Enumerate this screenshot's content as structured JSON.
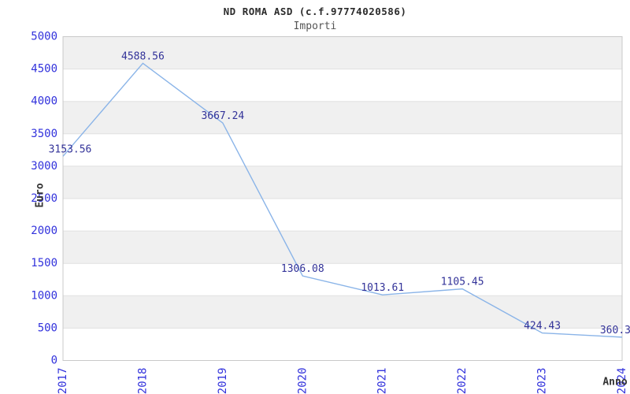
{
  "header": {
    "title": "ND ROMA ASD (c.f.97774020586)",
    "subtitle": "Importi"
  },
  "chart_data": {
    "type": "line",
    "title": "ND ROMA ASD (c.f.97774020586)",
    "subtitle": "Importi",
    "xlabel": "Anno",
    "ylabel": "Euro",
    "categories": [
      "2017",
      "2018",
      "2019",
      "2020",
      "2021",
      "2022",
      "2023",
      "2024"
    ],
    "series": [
      {
        "name": "Importi",
        "values": [
          3153.56,
          4588.56,
          3667.24,
          1306.08,
          1013.61,
          1105.45,
          424.43,
          360.3
        ]
      }
    ],
    "point_labels": [
      "3153.56",
      "4588.56",
      "3667.24",
      "1306.08",
      "1013.61",
      "1105.45",
      "424.43",
      "360.3"
    ],
    "ylim": [
      0,
      5000
    ],
    "ytick_step": 500,
    "ytick_labels": [
      "0",
      "500",
      "1000",
      "1500",
      "2000",
      "2500",
      "3000",
      "3500",
      "4000",
      "4500",
      "5000"
    ],
    "grid": true,
    "banded_background": true,
    "legend_position": "none",
    "colors": {
      "line": "#8ab4e8",
      "tick_label": "#3232dc",
      "point_label": "#333399",
      "band": "#f0f0f0",
      "gridline": "#e0e0e0",
      "plot_border": "#c9c9c9",
      "axis_title": "#333333",
      "title": "#2b2b2b",
      "subtitle": "#555555"
    }
  }
}
